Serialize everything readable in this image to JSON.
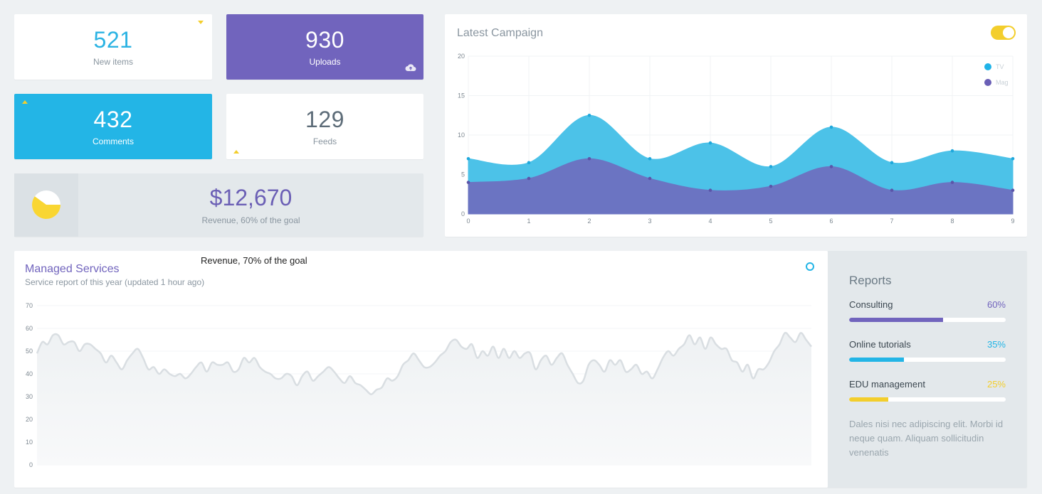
{
  "stats": {
    "new_items": {
      "value": "521",
      "label": "New items"
    },
    "uploads": {
      "value": "930",
      "label": "Uploads"
    },
    "comments": {
      "value": "432",
      "label": "Comments"
    },
    "feeds": {
      "value": "129",
      "label": "Feeds"
    }
  },
  "revenue": {
    "value": "$12,670",
    "label": "Revenue, 60% of the goal",
    "progress": 0.6
  },
  "campaign": {
    "title": "Latest Campaign",
    "toggle_on": true
  },
  "chart_data": [
    {
      "type": "area",
      "title": "Latest Campaign",
      "x": [
        0,
        1,
        2,
        3,
        4,
        5,
        6,
        7,
        8,
        9
      ],
      "ylim": [
        0,
        20
      ],
      "yticks": [
        0,
        5,
        10,
        15,
        20
      ],
      "grid": true,
      "legend_position": "top-right",
      "series": [
        {
          "name": "TV",
          "color": "#4cc2e8",
          "values": [
            7,
            6.5,
            12.5,
            7,
            9,
            6,
            11,
            6.5,
            8,
            7
          ]
        },
        {
          "name": "Mag",
          "color": "#6b74c2",
          "values": [
            4,
            4.5,
            7,
            4.5,
            3,
            3.5,
            6,
            3,
            4,
            3
          ]
        }
      ]
    },
    {
      "type": "area",
      "title": "Managed Services",
      "ylim": [
        0,
        70
      ],
      "yticks": [
        0,
        10,
        20,
        30,
        40,
        50,
        60,
        70
      ],
      "grid": true,
      "series": [
        {
          "color": "#d9dee2",
          "values": [
            49,
            54,
            53,
            57,
            57,
            53,
            54,
            54,
            50,
            53,
            53,
            51,
            49,
            45,
            48,
            45,
            42,
            46,
            49,
            51,
            47,
            42,
            43,
            40,
            42,
            40,
            39,
            40,
            38,
            40,
            43,
            45,
            41,
            45,
            44,
            44,
            45,
            41,
            42,
            47,
            45,
            47,
            43,
            41,
            40,
            38,
            38,
            40,
            39,
            35,
            39,
            41,
            37,
            39,
            41,
            43,
            41,
            38,
            36,
            39,
            36,
            35,
            33,
            31,
            33,
            34,
            38,
            37,
            39,
            44,
            46,
            49,
            46,
            43,
            43,
            45,
            48,
            50,
            54,
            55,
            52,
            51,
            53,
            47,
            50,
            48,
            52,
            47,
            51,
            47,
            50,
            47,
            49,
            49,
            42,
            46,
            48,
            44,
            47,
            49,
            44,
            40,
            36,
            37,
            44,
            46,
            44,
            41,
            46,
            44,
            46,
            41,
            42,
            44,
            40,
            41,
            38,
            42,
            47,
            50,
            48,
            51,
            53,
            57,
            53,
            56,
            51,
            56,
            53,
            51,
            51,
            46,
            45,
            41,
            44,
            38,
            42,
            42,
            45,
            50,
            53,
            58,
            56,
            54,
            58,
            55,
            52
          ]
        }
      ]
    }
  ],
  "managed": {
    "title": "Managed Services",
    "subtitle": "Service report of this year (updated 1 hour ago)",
    "overlay_note": "Revenue, 70% of the goal"
  },
  "reports": {
    "title": "Reports",
    "items": [
      {
        "name": "Consulting",
        "pct": "60%",
        "value": 0.6,
        "color": "#7164bd"
      },
      {
        "name": "Online tutorials",
        "pct": "35%",
        "value": 0.35,
        "color": "#23b5e6"
      },
      {
        "name": "EDU management",
        "pct": "25%",
        "value": 0.25,
        "color": "#f3ce2c"
      }
    ],
    "note": "Dales nisi nec adipiscing elit. Morbi id neque quam. Aliquam sollicitudin venenatis"
  },
  "colors": {
    "accent_purple": "#7164bd",
    "accent_blue": "#23b5e6",
    "accent_yellow": "#f3ce2c"
  }
}
